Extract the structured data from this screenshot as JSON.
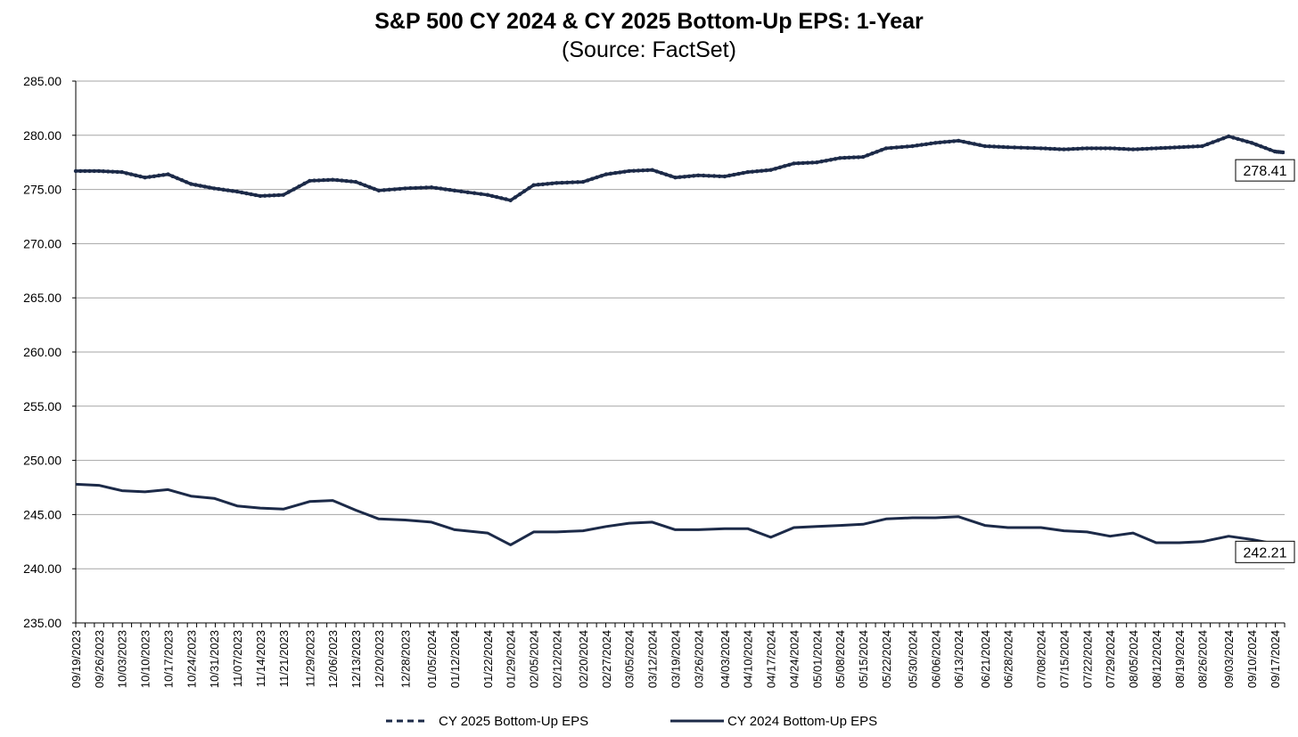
{
  "chart_data": {
    "type": "line",
    "title": "S&P 500 CY 2024 & CY 2025 Bottom-Up  EPS: 1-Year",
    "subtitle": "(Source: FactSet)",
    "xlabel": "",
    "ylabel": "",
    "ylim": [
      235,
      285
    ],
    "y_ticks": [
      "285.00",
      "280.00",
      "275.00",
      "270.00",
      "265.00",
      "260.00",
      "255.00",
      "250.00",
      "245.00",
      "240.00",
      "235.00"
    ],
    "grid": true,
    "legend_position": "bottom",
    "line_color": "#1c2a48",
    "x_tick_labels": [
      "09/19/2023",
      "09/26/2023",
      "10/03/2023",
      "10/10/2023",
      "10/17/2023",
      "10/24/2023",
      "10/31/2023",
      "11/07/2023",
      "11/14/2023",
      "11/21/2023",
      "11/29/2023",
      "12/06/2023",
      "12/13/2023",
      "12/20/2023",
      "12/28/2023",
      "01/05/2024",
      "01/12/2024",
      "01/22/2024",
      "01/29/2024",
      "02/05/2024",
      "02/12/2024",
      "02/20/2024",
      "02/27/2024",
      "03/05/2024",
      "03/12/2024",
      "03/19/2024",
      "03/26/2024",
      "04/03/2024",
      "04/10/2024",
      "04/17/2024",
      "04/24/2024",
      "05/01/2024",
      "05/08/2024",
      "05/15/2024",
      "05/22/2024",
      "05/30/2024",
      "06/06/2024",
      "06/13/2024",
      "06/21/2024",
      "06/28/2024",
      "07/08/2024",
      "07/15/2024",
      "07/22/2024",
      "07/29/2024",
      "08/05/2024",
      "08/12/2024",
      "08/19/2024",
      "08/26/2024",
      "09/03/2024",
      "09/10/2024",
      "09/17/2024"
    ],
    "x": [
      "09/19/2023",
      "09/26/2023",
      "10/03/2023",
      "10/10/2023",
      "10/17/2023",
      "10/24/2023",
      "10/31/2023",
      "11/07/2023",
      "11/14/2023",
      "11/21/2023",
      "11/29/2023",
      "12/06/2023",
      "12/13/2023",
      "12/20/2023",
      "12/28/2023",
      "01/05/2024",
      "01/12/2024",
      "01/22/2024",
      "01/29/2024",
      "02/05/2024",
      "02/12/2024",
      "02/20/2024",
      "02/27/2024",
      "03/05/2024",
      "03/12/2024",
      "03/19/2024",
      "03/26/2024",
      "04/03/2024",
      "04/10/2024",
      "04/17/2024",
      "04/24/2024",
      "05/01/2024",
      "05/08/2024",
      "05/15/2024",
      "05/22/2024",
      "05/30/2024",
      "06/06/2024",
      "06/13/2024",
      "06/21/2024",
      "06/28/2024",
      "07/08/2024",
      "07/15/2024",
      "07/22/2024",
      "07/29/2024",
      "08/05/2024",
      "08/12/2024",
      "08/19/2024",
      "08/26/2024",
      "09/03/2024",
      "09/10/2024",
      "09/17/2024",
      "09/20/2024"
    ],
    "series": [
      {
        "name": "CY 2025 Bottom-Up EPS",
        "style": "dashed-marker",
        "values": [
          276.7,
          276.7,
          276.6,
          276.1,
          276.4,
          275.5,
          275.1,
          274.8,
          274.4,
          274.5,
          275.8,
          275.9,
          275.7,
          274.9,
          275.1,
          275.2,
          274.9,
          274.5,
          274.0,
          275.4,
          275.6,
          275.7,
          276.4,
          276.7,
          276.8,
          276.1,
          276.3,
          276.2,
          276.6,
          276.8,
          277.4,
          277.5,
          277.9,
          278.0,
          278.8,
          279.0,
          279.3,
          279.5,
          279.0,
          278.9,
          278.8,
          278.7,
          278.8,
          278.8,
          278.7,
          278.8,
          278.9,
          279.0,
          279.9,
          279.3,
          278.5,
          278.41
        ],
        "end_label": "278.41"
      },
      {
        "name": "CY 2024 Bottom-Up EPS",
        "style": "solid",
        "values": [
          247.8,
          247.7,
          247.2,
          247.1,
          247.3,
          246.7,
          246.5,
          245.8,
          245.6,
          245.5,
          246.2,
          246.3,
          245.4,
          244.6,
          244.5,
          244.3,
          243.6,
          243.3,
          242.2,
          243.4,
          243.4,
          243.5,
          243.9,
          244.2,
          244.3,
          243.6,
          243.6,
          243.7,
          243.7,
          242.9,
          243.8,
          243.9,
          244.0,
          244.1,
          244.6,
          244.7,
          244.7,
          244.8,
          244.0,
          243.8,
          243.8,
          243.5,
          243.4,
          243.0,
          243.3,
          242.4,
          242.4,
          242.5,
          243.0,
          242.7,
          242.3,
          242.21
        ],
        "end_label": "242.21"
      }
    ]
  }
}
